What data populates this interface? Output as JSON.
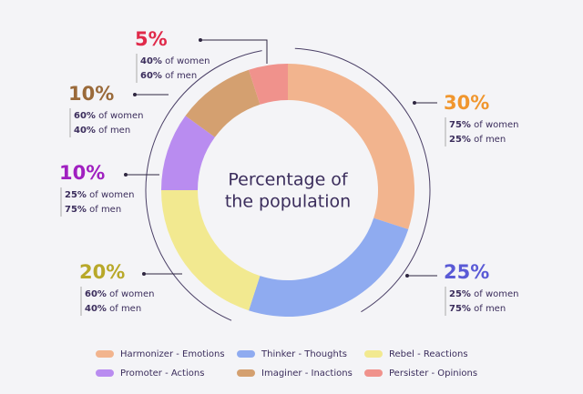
{
  "chart_data": {
    "type": "donut",
    "center_text": [
      "Percentage of",
      "the population"
    ],
    "women_text": "of women",
    "men_text": "of men",
    "categories": [
      "Harmonizer - Emotions",
      "Thinker - Thoughts",
      "Rebel - Reactions",
      "Promoter - Actions",
      "Imaginer - Inactions",
      "Persister - Opinions"
    ],
    "values": [
      30,
      25,
      20,
      10,
      10,
      5
    ],
    "value_labels": [
      "30%",
      "25%",
      "20%",
      "10%",
      "10%",
      "5%"
    ],
    "colors": [
      "#f2b48e",
      "#8fabf0",
      "#f2e990",
      "#b98cf0",
      "#d4a070",
      "#f0928c"
    ],
    "label_colors": [
      "#f0962e",
      "#5a5ad6",
      "#b8a82a",
      "#a020c0",
      "#9a6a3a",
      "#e02a4a"
    ],
    "women": [
      "75%",
      "25%",
      "60%",
      "25%",
      "60%",
      "40%"
    ],
    "men": [
      "25%",
      "75%",
      "40%",
      "75%",
      "40%",
      "60%"
    ]
  }
}
